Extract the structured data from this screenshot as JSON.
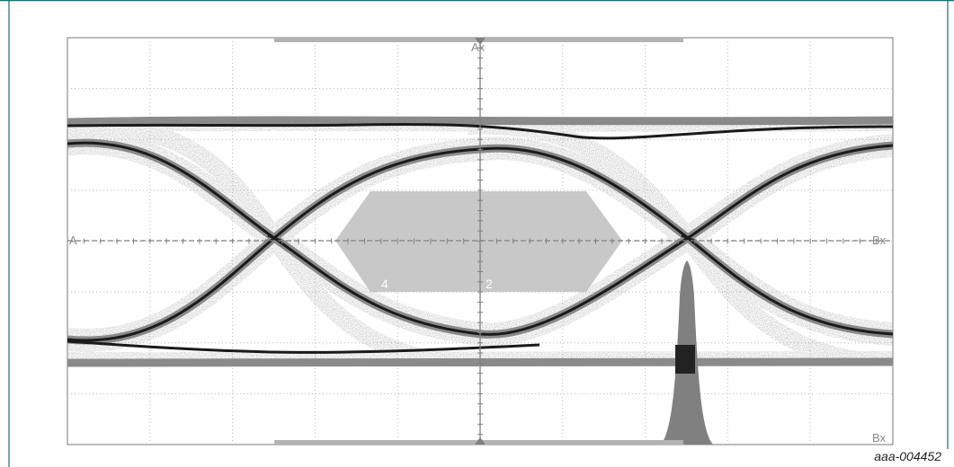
{
  "figure_id": "aaa-004452",
  "chart_data": {
    "type": "eye-diagram",
    "grid": {
      "divisions_x": 10,
      "divisions_y": 8,
      "minor_ticks": true
    },
    "markers": {
      "top_center": "Ax",
      "right_mid": "Bx",
      "right_bottom": "Bx",
      "left_mid": "A"
    },
    "crossings_ui": [
      0.5,
      1.5
    ],
    "mask": {
      "regions": [
        "4",
        "2"
      ],
      "fill": "#c8c8c8"
    },
    "histogram": {
      "position_ui": 1.5,
      "color": "#808080",
      "peak_color": "#222222"
    },
    "colors": {
      "trace_core": "#1a1a1a",
      "trace_halo": "#7a7a7a",
      "grid": "#b8b8b8",
      "axis": "#808080"
    }
  }
}
